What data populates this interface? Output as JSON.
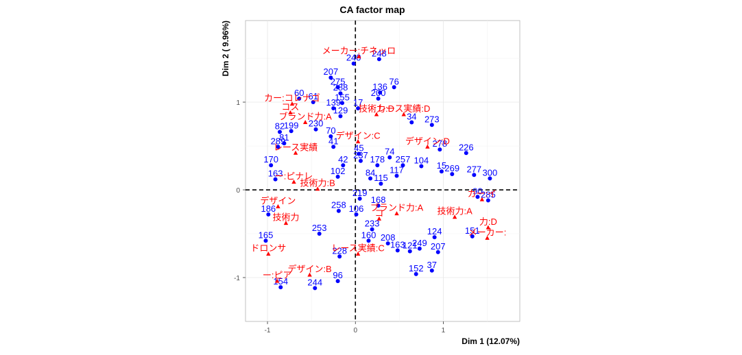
{
  "chart_data": {
    "type": "scatter",
    "title": "CA factor map",
    "xlabel": "Dim 1 (12.07%)",
    "ylabel": "Dim 2 ( 9.96%)",
    "xlim": [
      -1.25,
      1.87
    ],
    "ylim": [
      -1.5,
      1.93
    ],
    "xticks": [
      -1,
      0,
      1
    ],
    "yticks": [
      -1,
      0,
      1
    ],
    "grid": true,
    "reference_lines": [
      0,
      0
    ],
    "colors": {
      "rows": "#0000ff",
      "columns": "#ff0000",
      "reference": "#000000"
    },
    "row_points": [
      {
        "label": "240",
        "x": -0.02,
        "y": 1.44
      },
      {
        "label": "248",
        "x": 0.27,
        "y": 1.49
      },
      {
        "label": "207",
        "x": -0.28,
        "y": 1.28
      },
      {
        "label": "275",
        "x": -0.2,
        "y": 1.17
      },
      {
        "label": "288",
        "x": -0.17,
        "y": 1.1
      },
      {
        "label": "76",
        "x": 0.44,
        "y": 1.17
      },
      {
        "label": "136",
        "x": 0.28,
        "y": 1.11
      },
      {
        "label": "200",
        "x": 0.26,
        "y": 1.04
      },
      {
        "label": "155",
        "x": -0.15,
        "y": 0.99
      },
      {
        "label": "60",
        "x": -0.64,
        "y": 1.04
      },
      {
        "label": "61",
        "x": -0.48,
        "y": 1.0
      },
      {
        "label": "139",
        "x": -0.25,
        "y": 0.93
      },
      {
        "label": "17",
        "x": 0.03,
        "y": 0.93
      },
      {
        "label": "129",
        "x": -0.17,
        "y": 0.84
      },
      {
        "label": "34",
        "x": 0.64,
        "y": 0.77
      },
      {
        "label": "273",
        "x": 0.87,
        "y": 0.74
      },
      {
        "label": "230",
        "x": -0.45,
        "y": 0.69
      },
      {
        "label": "70",
        "x": -0.28,
        "y": 0.61
      },
      {
        "label": "82",
        "x": -0.86,
        "y": 0.66
      },
      {
        "label": "81",
        "x": -0.81,
        "y": 0.53
      },
      {
        "label": "199",
        "x": -0.73,
        "y": 0.67
      },
      {
        "label": "289",
        "x": -0.88,
        "y": 0.49
      },
      {
        "label": "41",
        "x": -0.25,
        "y": 0.49
      },
      {
        "label": "45",
        "x": 0.04,
        "y": 0.41
      },
      {
        "label": "74",
        "x": 0.39,
        "y": 0.37
      },
      {
        "label": "226",
        "x": 1.26,
        "y": 0.42
      },
      {
        "label": "278",
        "x": 0.96,
        "y": 0.46
      },
      {
        "label": "104",
        "x": 0.75,
        "y": 0.27
      },
      {
        "label": "257",
        "x": 0.54,
        "y": 0.28
      },
      {
        "label": "178",
        "x": 0.25,
        "y": 0.28
      },
      {
        "label": "237",
        "x": 0.06,
        "y": 0.33
      },
      {
        "label": "42",
        "x": -0.14,
        "y": 0.28
      },
      {
        "label": "102",
        "x": -0.2,
        "y": 0.15
      },
      {
        "label": "117",
        "x": 0.47,
        "y": 0.16
      },
      {
        "label": "115",
        "x": 0.29,
        "y": 0.07
      },
      {
        "label": "84",
        "x": 0.17,
        "y": 0.13
      },
      {
        "label": "15",
        "x": 0.98,
        "y": 0.21
      },
      {
        "label": "269",
        "x": 1.1,
        "y": 0.18
      },
      {
        "label": "277",
        "x": 1.35,
        "y": 0.17
      },
      {
        "label": "300",
        "x": 1.53,
        "y": 0.13
      },
      {
        "label": "170",
        "x": -0.96,
        "y": 0.28
      },
      {
        "label": "163",
        "x": -0.91,
        "y": 0.12
      },
      {
        "label": "285",
        "x": 1.51,
        "y": -0.12
      },
      {
        "label": "90",
        "x": 1.39,
        "y": -0.08
      },
      {
        "label": "219",
        "x": 0.05,
        "y": -0.1
      },
      {
        "label": "168",
        "x": 0.26,
        "y": -0.18
      },
      {
        "label": "258",
        "x": -0.19,
        "y": -0.24
      },
      {
        "label": "106",
        "x": 0.01,
        "y": -0.28
      },
      {
        "label": "208",
        "x": 0.37,
        "y": -0.61
      },
      {
        "label": "186",
        "x": -0.99,
        "y": -0.28
      },
      {
        "label": "163",
        "x": 0.48,
        "y": -0.69
      },
      {
        "label": "121",
        "x": 0.62,
        "y": -0.7
      },
      {
        "label": "249",
        "x": 0.73,
        "y": -0.67
      },
      {
        "label": "207",
        "x": 0.94,
        "y": -0.71
      },
      {
        "label": "124",
        "x": 0.9,
        "y": -0.54
      },
      {
        "label": "151",
        "x": 1.33,
        "y": -0.53
      },
      {
        "label": "160",
        "x": 0.15,
        "y": -0.58
      },
      {
        "label": "233",
        "x": 0.19,
        "y": -0.45
      },
      {
        "label": "253",
        "x": -0.41,
        "y": -0.5
      },
      {
        "label": "165",
        "x": -1.02,
        "y": -0.58
      },
      {
        "label": "228",
        "x": -0.18,
        "y": -0.76
      },
      {
        "label": "152",
        "x": 0.69,
        "y": -0.96
      },
      {
        "label": "37",
        "x": 0.87,
        "y": -0.92
      },
      {
        "label": "96",
        "x": -0.2,
        "y": -1.04
      },
      {
        "label": "244",
        "x": -0.46,
        "y": -1.12
      },
      {
        "label": "154",
        "x": -0.85,
        "y": -1.11
      }
    ],
    "column_points": [
      {
        "label": "メーカー:チネッロ",
        "x": 0.04,
        "y": 1.52
      },
      {
        "label": "カー:コレナゴ",
        "x": -0.72,
        "y": 0.98
      },
      {
        "label": "コス",
        "x": -0.74,
        "y": 0.88
      },
      {
        "label": "ブランド力:A",
        "x": -0.57,
        "y": 0.77
      },
      {
        "label": "技術力:D",
        "x": 0.24,
        "y": 0.86
      },
      {
        "label": "レース実績:D",
        "x": 0.55,
        "y": 0.86
      },
      {
        "label": "デザイン:C",
        "x": 0.03,
        "y": 0.55
      },
      {
        "label": "デザイン:D",
        "x": 0.82,
        "y": 0.49
      },
      {
        "label": "レース実績",
        "x": -0.68,
        "y": 0.42
      },
      {
        "label": "ー:ピナレ",
        "x": -0.7,
        "y": 0.09
      },
      {
        "label": "技術力:B",
        "x": -0.43,
        "y": 0.01
      },
      {
        "label": "デザイン",
        "x": -0.88,
        "y": -0.19
      },
      {
        "label": "カー:イ",
        "x": 1.44,
        "y": -0.11
      },
      {
        "label": "技術力:A",
        "x": 1.13,
        "y": -0.31
      },
      {
        "label": "ブランド力:A",
        "x": 0.47,
        "y": -0.27
      },
      {
        "label": "コ",
        "x": 0.27,
        "y": -0.33
      },
      {
        "label": "技術力",
        "x": -0.79,
        "y": -0.38
      },
      {
        "label": "力:D",
        "x": 1.51,
        "y": -0.43
      },
      {
        "label": "メーカー:",
        "x": 1.5,
        "y": -0.55
      },
      {
        "label": "ドロンサ",
        "x": -0.99,
        "y": -0.73
      },
      {
        "label": "レース実績:C",
        "x": 0.03,
        "y": -0.73
      },
      {
        "label": "デザイン:B",
        "x": -0.52,
        "y": -0.97
      },
      {
        "label": "ー:ピア",
        "x": -0.89,
        "y": -1.04
      }
    ]
  }
}
